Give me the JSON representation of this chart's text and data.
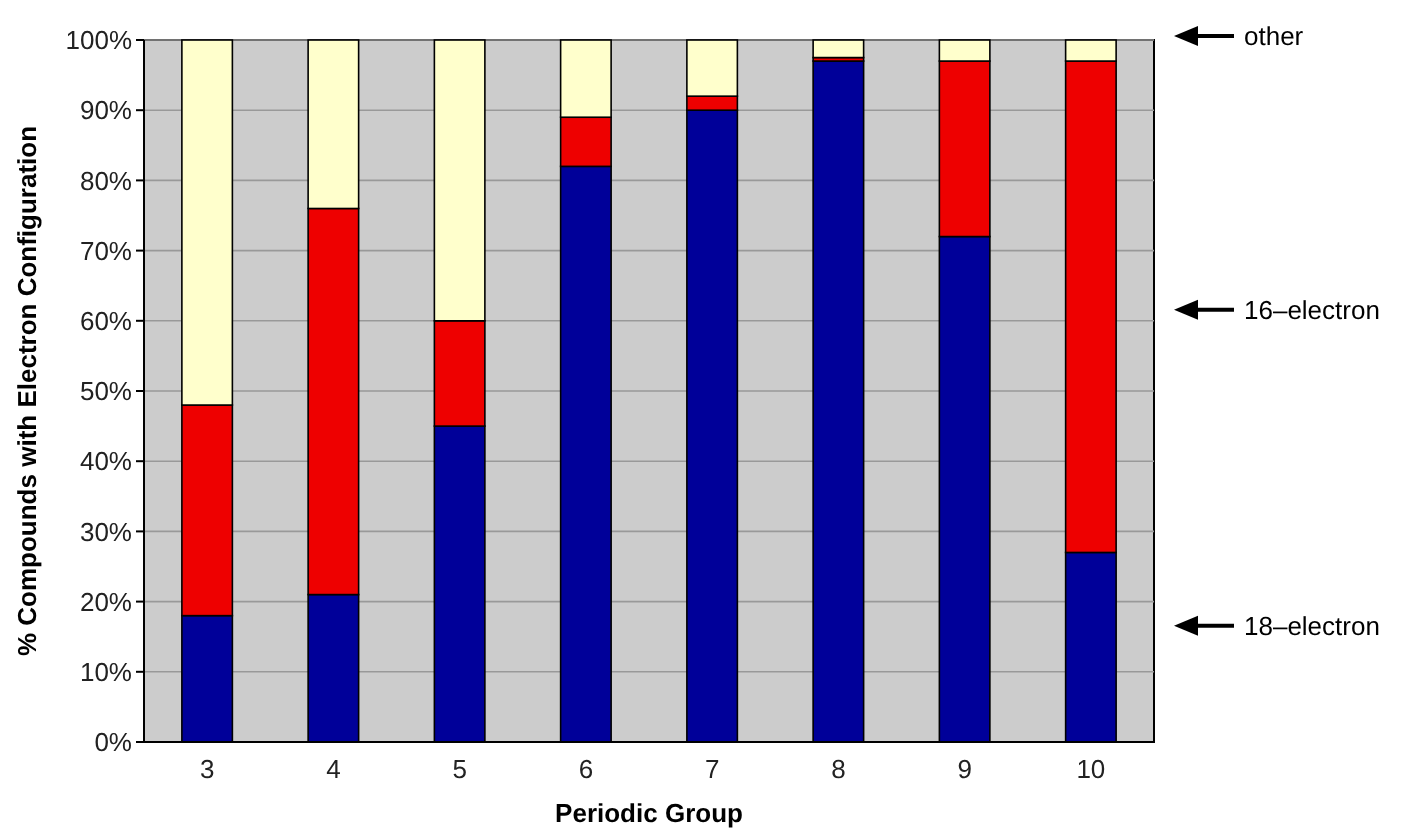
{
  "chart_data": {
    "type": "bar",
    "stacked": true,
    "xlabel": "Periodic Group",
    "ylabel": "% Compounds with Electron Configuration",
    "categories": [
      "3",
      "4",
      "5",
      "6",
      "7",
      "8",
      "9",
      "10"
    ],
    "series": [
      {
        "name": "18–electron",
        "color": "#000099",
        "values": [
          18,
          21,
          45,
          82,
          90,
          97,
          72,
          27
        ]
      },
      {
        "name": "16–electron",
        "color": "#ee0000",
        "values": [
          30,
          55,
          15,
          7,
          2,
          0.5,
          25,
          70
        ]
      },
      {
        "name": "other",
        "color": "#ffffcc",
        "values": [
          52,
          24,
          40,
          11,
          8,
          2.5,
          3,
          3
        ]
      }
    ],
    "ylim": [
      0,
      100
    ],
    "yticks": [
      {
        "value": 0,
        "label": "0%"
      },
      {
        "value": 10,
        "label": "10%"
      },
      {
        "value": 20,
        "label": "20%"
      },
      {
        "value": 30,
        "label": "30%"
      },
      {
        "value": 40,
        "label": "40%"
      },
      {
        "value": 50,
        "label": "50%"
      },
      {
        "value": 60,
        "label": "60%"
      },
      {
        "value": 70,
        "label": "70%"
      },
      {
        "value": 80,
        "label": "80%"
      },
      {
        "value": 90,
        "label": "90%"
      },
      {
        "value": 100,
        "label": "100%"
      }
    ],
    "grid": "y",
    "legend": "right"
  }
}
